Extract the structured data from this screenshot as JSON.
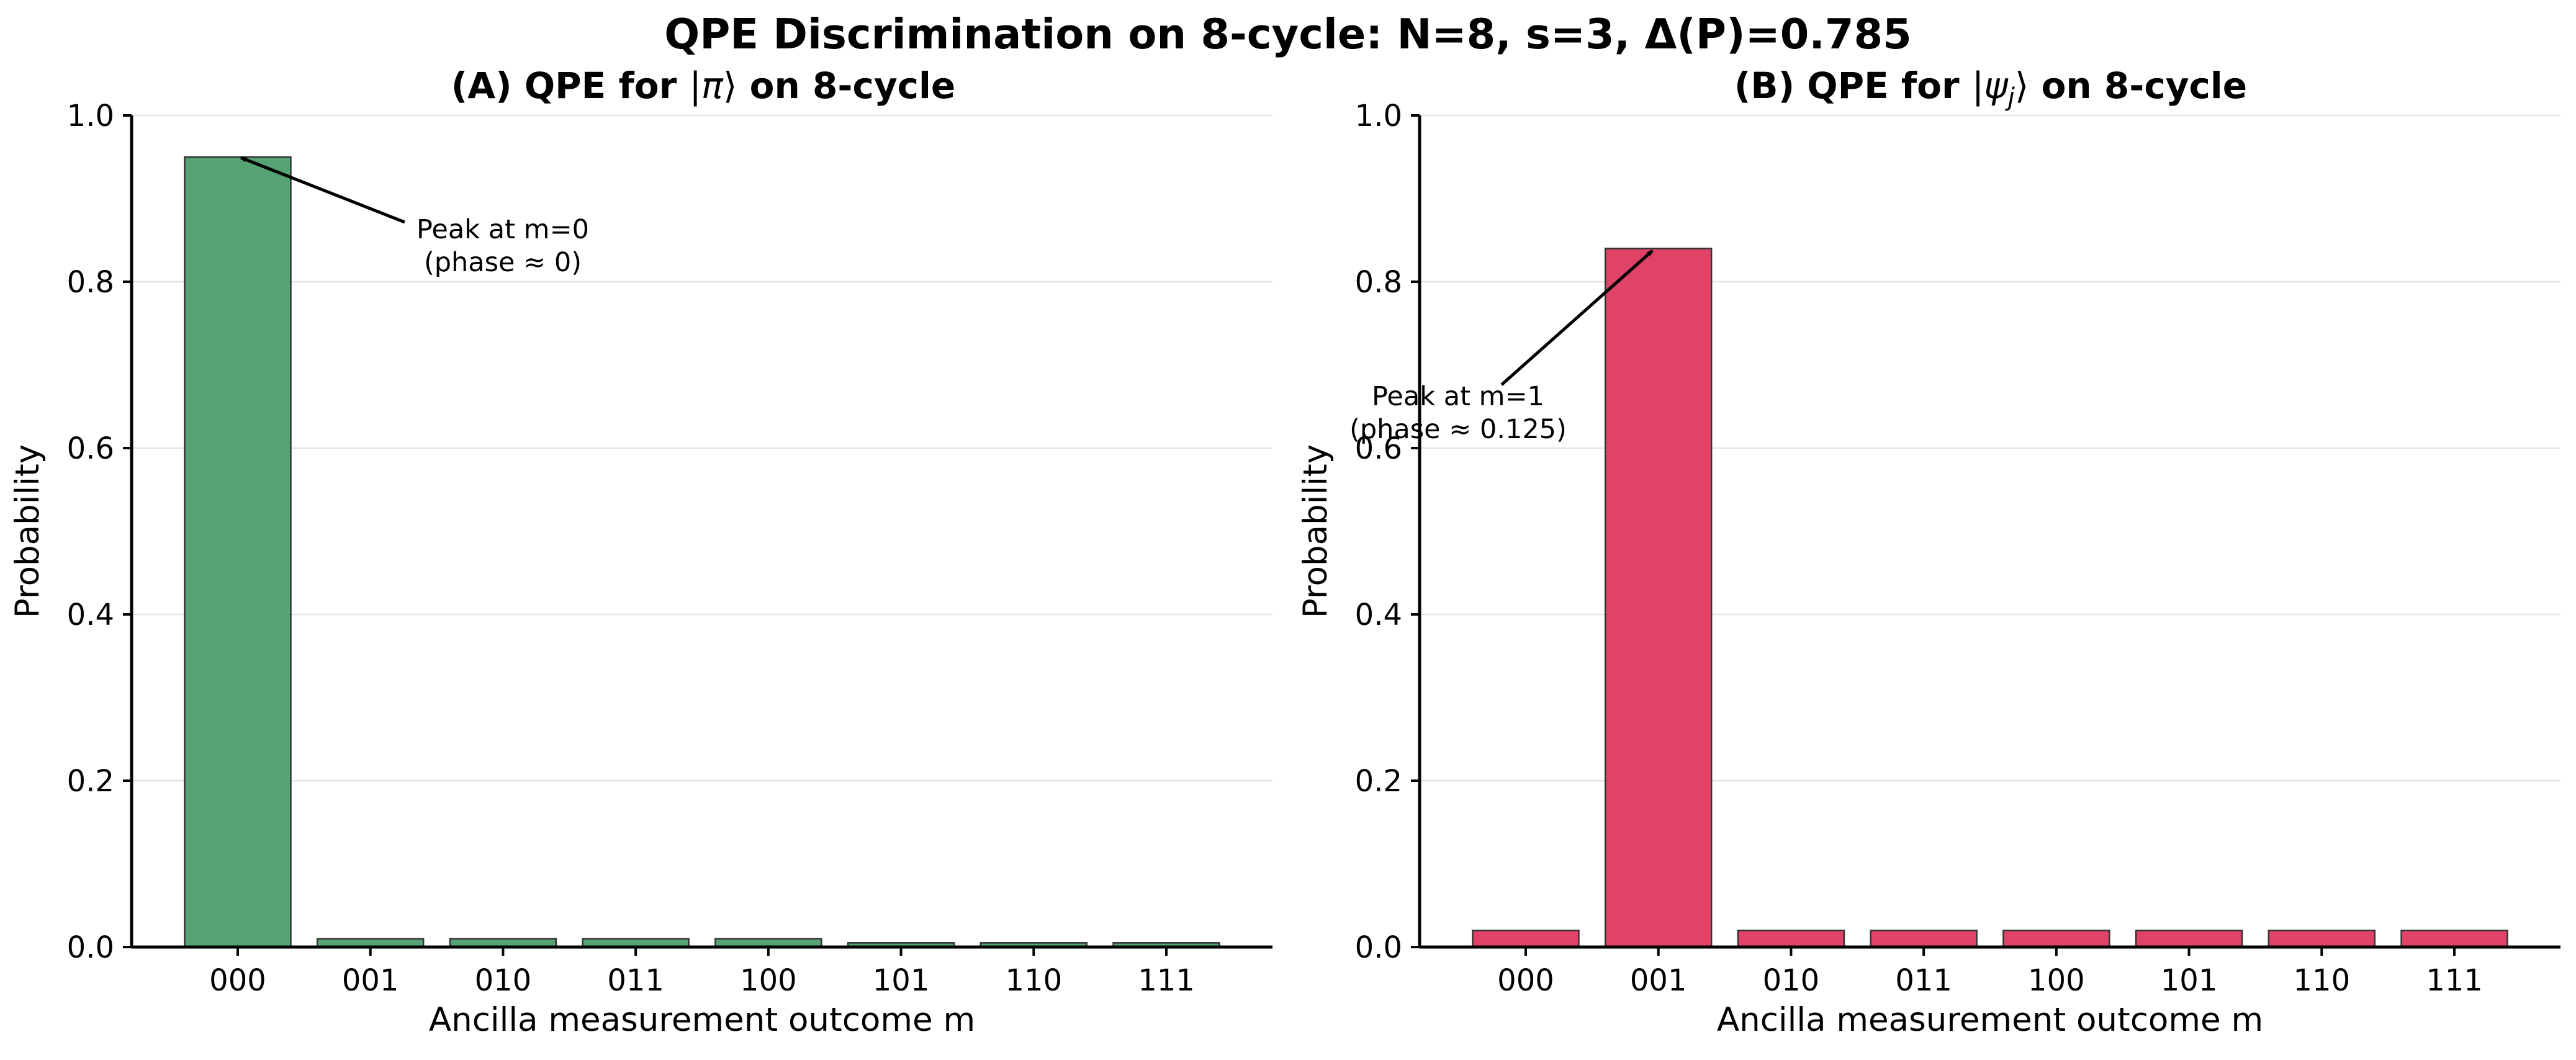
{
  "suptitle": "QPE Discrimination on 8-cycle: N=8, s=3, Δ(P)=0.785",
  "chart_data": [
    {
      "type": "bar",
      "title_prefix": "(A) QPE for ",
      "title_state": "π",
      "title_suffix": " on 8-cycle",
      "xlabel": "Ancilla measurement outcome m",
      "ylabel": "Probability",
      "ylim": [
        0,
        1.0
      ],
      "yticks": [
        "0.0",
        "0.2",
        "0.4",
        "0.6",
        "0.8",
        "1.0"
      ],
      "categories": [
        "000",
        "001",
        "010",
        "011",
        "100",
        "101",
        "110",
        "111"
      ],
      "values": [
        0.95,
        0.01,
        0.01,
        0.01,
        0.01,
        0.005,
        0.005,
        0.005
      ],
      "color": "#56a374",
      "grid": "y",
      "annotation": {
        "line1": "Peak at m=0",
        "line2": "(phase ≈ 0)",
        "target_category": "000",
        "target_value": 0.95
      }
    },
    {
      "type": "bar",
      "title_prefix": "(B) QPE for ",
      "title_state": "ψ",
      "title_sub": "j",
      "title_suffix": " on 8-cycle",
      "xlabel": "Ancilla measurement outcome m",
      "ylabel": "Probability",
      "ylim": [
        0,
        1.0
      ],
      "yticks": [
        "0.0",
        "0.2",
        "0.4",
        "0.6",
        "0.8",
        "1.0"
      ],
      "categories": [
        "000",
        "001",
        "010",
        "011",
        "100",
        "101",
        "110",
        "111"
      ],
      "values": [
        0.02,
        0.84,
        0.02,
        0.02,
        0.02,
        0.02,
        0.02,
        0.02
      ],
      "color": "#e04367",
      "grid": "y",
      "annotation": {
        "line1": "Peak at m=1",
        "line2": "(phase ≈ 0.125)",
        "target_category": "001",
        "target_value": 0.84
      }
    }
  ]
}
